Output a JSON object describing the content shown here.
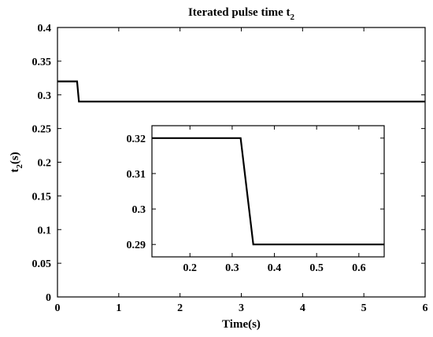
{
  "chart_data": [
    {
      "type": "line",
      "title": "Iterated pulse time t",
      "title_subscript": "2",
      "xlabel": "Time(s)",
      "ylabel": "t",
      "ylabel_subscript": "2",
      "ylabel_suffix": "(s)",
      "xlim": [
        0,
        6
      ],
      "ylim": [
        0,
        0.4
      ],
      "xticks": [
        0,
        1,
        2,
        3,
        4,
        5,
        6
      ],
      "xtick_labels": [
        "0",
        "1",
        "2",
        "3",
        "4",
        "5",
        "6"
      ],
      "yticks": [
        0,
        0.05,
        0.1,
        0.15,
        0.2,
        0.25,
        0.3,
        0.35,
        0.4
      ],
      "ytick_labels": [
        "0",
        "0.05",
        "0.1",
        "0.15",
        "0.2",
        "0.25",
        "0.3",
        "0.35",
        "0.4"
      ],
      "grid": false,
      "series": [
        {
          "x": [
            0,
            0.32,
            0.35,
            6
          ],
          "y": [
            0.32,
            0.32,
            0.29,
            0.29
          ],
          "color": "#000000"
        }
      ]
    },
    {
      "type": "line",
      "role": "inset",
      "xlim": [
        0.11,
        0.66
      ],
      "ylim": [
        0.2865,
        0.3235
      ],
      "xticks": [
        0.2,
        0.3,
        0.4,
        0.5,
        0.6
      ],
      "xtick_labels": [
        "0.2",
        "0.3",
        "0.4",
        "0.5",
        "0.6"
      ],
      "yticks": [
        0.29,
        0.3,
        0.31,
        0.32
      ],
      "ytick_labels": [
        "0.29",
        "0.3",
        "0.31",
        "0.32"
      ],
      "grid": false,
      "series": [
        {
          "x": [
            0.11,
            0.32,
            0.35,
            0.66
          ],
          "y": [
            0.32,
            0.32,
            0.29,
            0.29
          ],
          "color": "#000000"
        }
      ]
    }
  ]
}
